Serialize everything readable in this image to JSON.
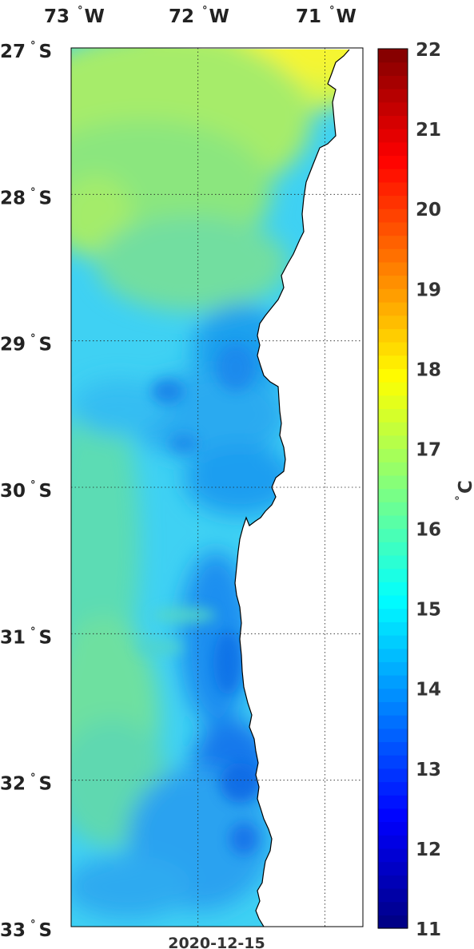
{
  "map": {
    "date": "2020-12-15",
    "lon_labels": [
      {
        "deg": "73",
        "hem": "W",
        "lon": -73
      },
      {
        "deg": "72",
        "hem": "W",
        "lon": -72
      },
      {
        "deg": "71",
        "hem": "W",
        "lon": -71
      }
    ],
    "lat_labels": [
      {
        "deg": "27",
        "hem": "S",
        "lat": -27
      },
      {
        "deg": "28",
        "hem": "S",
        "lat": -28
      },
      {
        "deg": "29",
        "hem": "S",
        "lat": -29
      },
      {
        "deg": "30",
        "hem": "S",
        "lat": -30
      },
      {
        "deg": "31",
        "hem": "S",
        "lat": -31
      },
      {
        "deg": "32",
        "hem": "S",
        "lat": -32
      },
      {
        "deg": "33",
        "hem": "S",
        "lat": -33
      }
    ],
    "lon_range": [
      -73.0,
      -70.7
    ],
    "lat_range": [
      -33.0,
      -27.0
    ],
    "grid": true,
    "colormap": "jet",
    "colorbar": {
      "min": 11,
      "max": 22,
      "ticks": [
        11,
        12,
        13,
        14,
        15,
        16,
        17,
        18,
        19,
        20,
        21,
        22
      ],
      "unit_deg": "°",
      "unit": "C"
    }
  }
}
